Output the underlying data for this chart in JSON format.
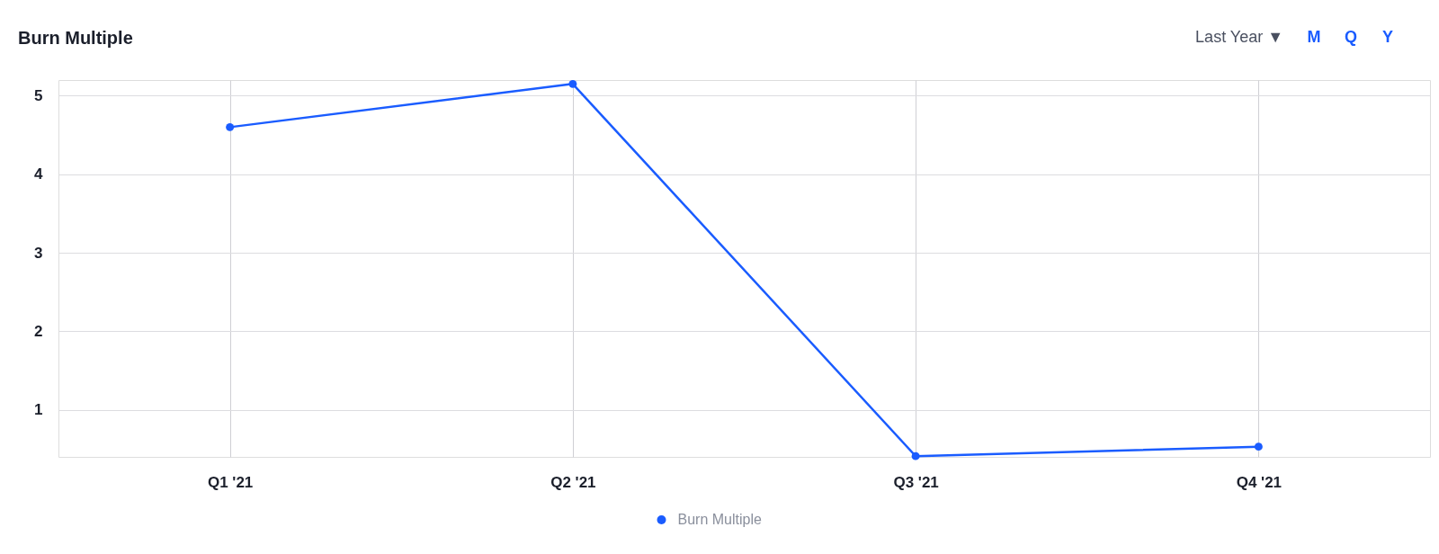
{
  "chart_data": {
    "type": "line",
    "title": "Burn Multiple",
    "categories": [
      "Q1 '21",
      "Q2 '21",
      "Q3 '21",
      "Q4 '21"
    ],
    "series": [
      {
        "name": "Burn Multiple",
        "color": "#1a5cff",
        "values": [
          4.6,
          5.15,
          0.41,
          0.53
        ]
      }
    ],
    "ylim": [
      0.4,
      5.2
    ],
    "yticks": [
      1,
      2,
      3,
      4,
      5
    ],
    "grid": true,
    "legend": "bottom",
    "marker": "circle",
    "line_style": "solid",
    "annotations": [
      "Last Year ▼",
      "M",
      "Q",
      "Y"
    ]
  }
}
